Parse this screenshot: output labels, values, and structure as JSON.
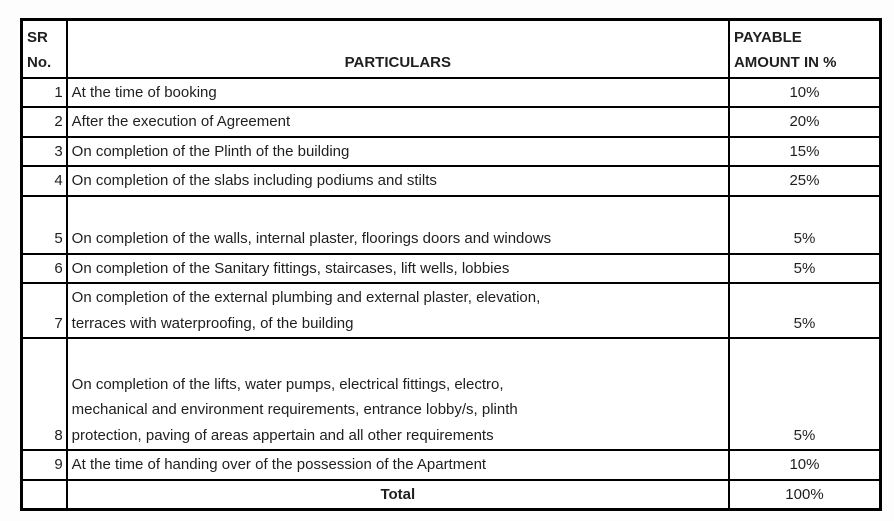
{
  "table": {
    "headers": {
      "sr_no": "SR\nNo.",
      "particulars": "PARTICULARS",
      "payable": "PAYABLE\nAMOUNT IN %"
    },
    "rows": [
      {
        "no": "1",
        "particulars": "At the time of booking",
        "payable": "10%"
      },
      {
        "no": "2",
        "particulars": "After the execution of Agreement",
        "payable": "20%"
      },
      {
        "no": "3",
        "particulars": "On completion of the Plinth of the building",
        "payable": "15%"
      },
      {
        "no": "4",
        "particulars": "On completion of the slabs including podiums and stilts",
        "payable": "25%"
      },
      {
        "no": "5",
        "particulars": "On completion of the walls, internal plaster, floorings doors and windows",
        "payable": "5%"
      },
      {
        "no": "6",
        "particulars": "On completion of the Sanitary fittings, staircases, lift wells, lobbies",
        "payable": "5%"
      },
      {
        "no": "7",
        "particulars": "On completion of the external plumbing and external plaster, elevation,\nterraces with waterproofing, of the building",
        "payable": "5%"
      },
      {
        "no": "8",
        "particulars": "On completion of the lifts, water pumps, electrical fittings, electro,\nmechanical and environment requirements, entrance lobby/s, plinth\nprotection, paving of areas appertain and all other requirements",
        "payable": "5%"
      },
      {
        "no": "9",
        "particulars": "At the time of handing over of the possession of the Apartment",
        "payable": "10%"
      }
    ],
    "total_row": {
      "label": "Total",
      "value": "100%"
    }
  },
  "colors": {
    "border": "#000000",
    "text": "#1f1f1f",
    "background": "#fdfdfd"
  }
}
